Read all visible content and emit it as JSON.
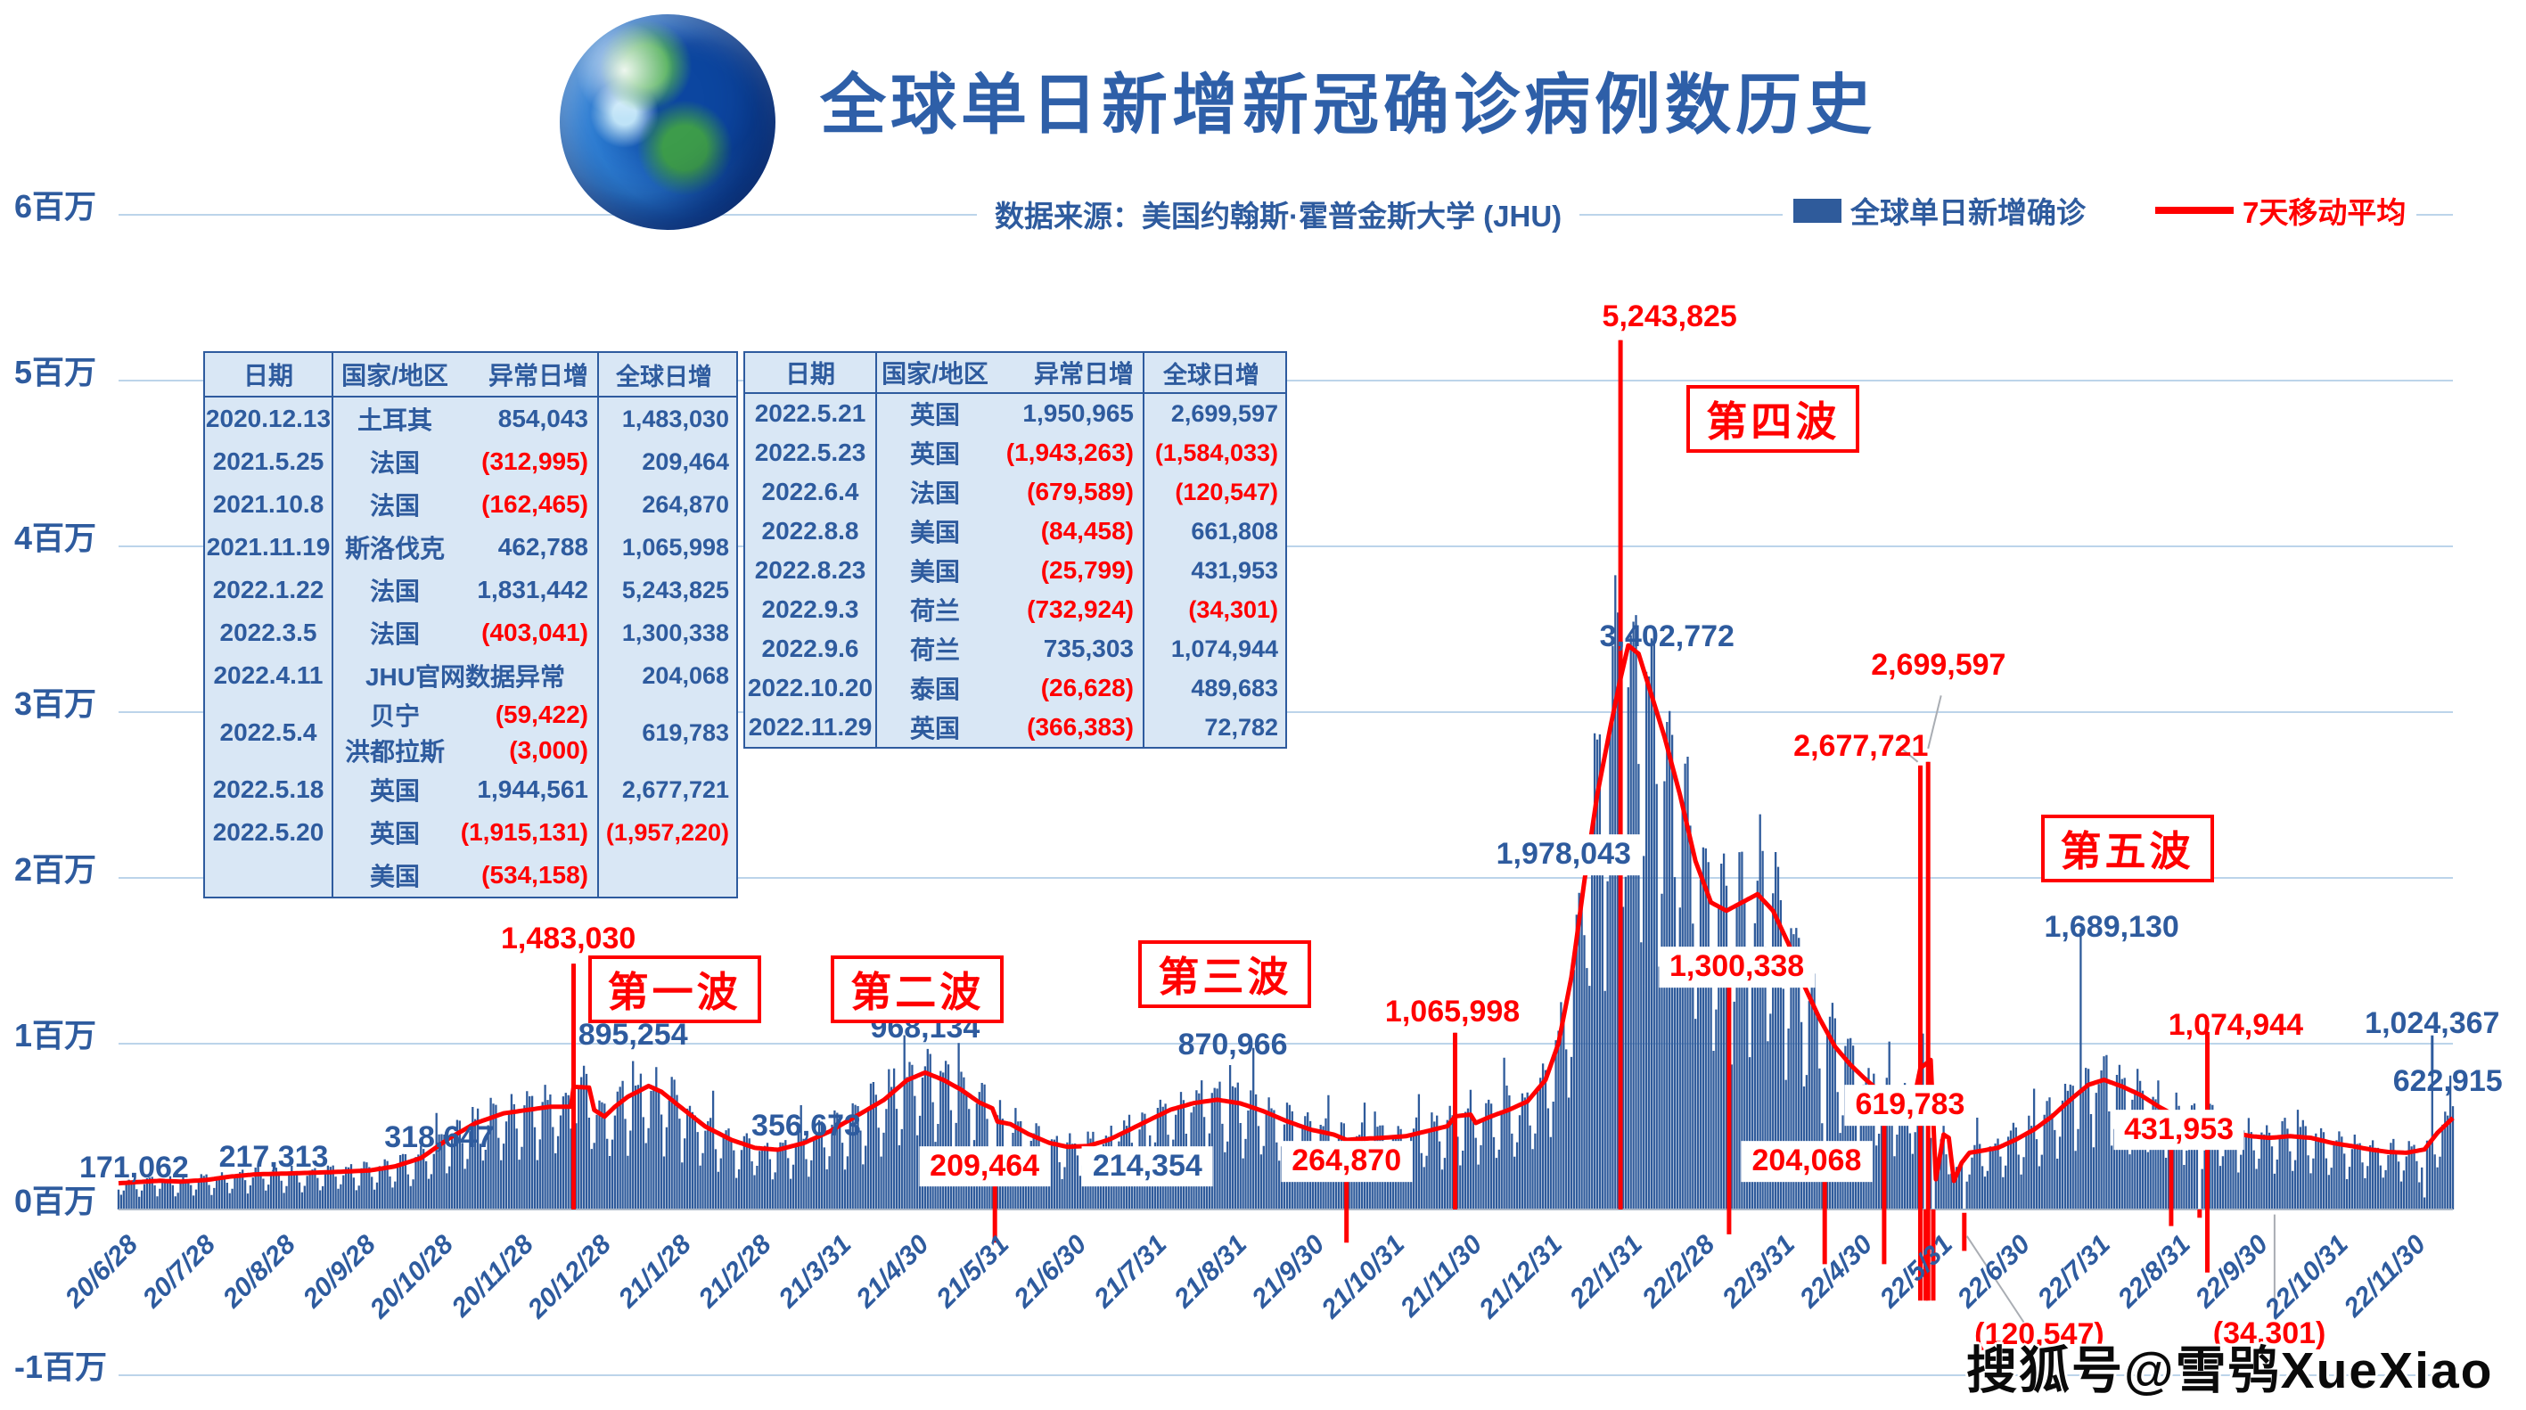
{
  "header": {
    "title": "全球单日新增新冠确诊病例数历史",
    "source": "数据来源：美国约翰斯·霍普金斯大学 (JHU)",
    "legend": [
      {
        "label": "全球单日新增确诊",
        "color": "#2f5b9b",
        "type": "square"
      },
      {
        "label": "7天移动平均",
        "color": "#ff0000",
        "type": "line"
      }
    ]
  },
  "watermark": "搜狐号@雪鸮XueXiao",
  "tables": {
    "headers": [
      "日期",
      "国家/地区",
      "异常日增",
      "全球日增"
    ],
    "left": {
      "rows": [
        {
          "d": "2020.12.13",
          "e": [
            [
              "土耳其",
              "854,043"
            ]
          ],
          "g": "1,483,030"
        },
        {
          "d": "2021.5.25",
          "e": [
            [
              "法国",
              "(312,995)"
            ]
          ],
          "g": "209,464"
        },
        {
          "d": "2021.10.8",
          "e": [
            [
              "法国",
              "(162,465)"
            ]
          ],
          "g": "264,870"
        },
        {
          "d": "2021.11.19",
          "e": [
            [
              "斯洛伐克",
              "462,788"
            ]
          ],
          "g": "1,065,998"
        },
        {
          "d": "2022.1.22",
          "e": [
            [
              "法国",
              "1,831,442"
            ]
          ],
          "g": "5,243,825"
        },
        {
          "d": "2022.3.5",
          "e": [
            [
              "法国",
              "(403,041)"
            ]
          ],
          "g": "1,300,338"
        },
        {
          "d": "2022.4.11",
          "e": [
            [
              "JHU官网数据异常",
              ""
            ]
          ],
          "g": "204,068"
        },
        {
          "d": "2022.5.4",
          "e": [
            [
              "贝宁",
              "(59,422)"
            ],
            [
              "洪都拉斯",
              "(3,000)"
            ]
          ],
          "g": "619,783"
        },
        {
          "d": "2022.5.18",
          "e": [
            [
              "英国",
              "1,944,561"
            ]
          ],
          "g": "2,677,721"
        },
        {
          "d": "2022.5.20",
          "e": [
            [
              "英国",
              "(1,915,131)"
            ]
          ],
          "g": "(1,957,220)"
        },
        {
          "d": "",
          "e": [
            [
              "美国",
              "(534,158)"
            ]
          ],
          "g": ""
        }
      ]
    },
    "right": {
      "rows": [
        {
          "d": "2022.5.21",
          "e": [
            [
              "英国",
              "1,950,965"
            ]
          ],
          "g": "2,699,597"
        },
        {
          "d": "2022.5.23",
          "e": [
            [
              "英国",
              "(1,943,263)"
            ]
          ],
          "g": "(1,584,033)"
        },
        {
          "d": "2022.6.4",
          "e": [
            [
              "法国",
              "(679,589)"
            ]
          ],
          "g": "(120,547)"
        },
        {
          "d": "2022.8.8",
          "e": [
            [
              "美国",
              "(84,458)"
            ]
          ],
          "g": "661,808"
        },
        {
          "d": "2022.8.23",
          "e": [
            [
              "美国",
              "(25,799)"
            ]
          ],
          "g": "431,953"
        },
        {
          "d": "2022.9.3",
          "e": [
            [
              "荷兰",
              "(732,924)"
            ]
          ],
          "g": "(34,301)"
        },
        {
          "d": "2022.9.6",
          "e": [
            [
              "荷兰",
              "735,303"
            ]
          ],
          "g": "1,074,944"
        },
        {
          "d": "2022.10.20",
          "e": [
            [
              "泰国",
              "(26,628)"
            ]
          ],
          "g": "489,683"
        },
        {
          "d": "2022.11.29",
          "e": [
            [
              "英国",
              "(366,383)"
            ]
          ],
          "g": "72,782"
        }
      ]
    }
  },
  "chart_data": {
    "type": "bar",
    "title": "全球单日新增新冠确诊病例数历史",
    "bar_series_name": "全球单日新增确诊",
    "line_series_name": "7天移动平均",
    "bar_color": "#2f5b9b",
    "line_color": "#ff0000",
    "grid_color": "#bcd4ea",
    "ylim": [
      -1000000,
      6000000
    ],
    "start_date": "2020-06-20",
    "end_date": "2022-12-10",
    "y_ticks": [
      [
        6,
        "6百万"
      ],
      [
        5,
        "5百万"
      ],
      [
        4,
        "4百万"
      ],
      [
        3,
        "3百万"
      ],
      [
        2,
        "2百万"
      ],
      [
        1,
        "1百万"
      ],
      [
        0,
        "0百万"
      ],
      [
        -1,
        "-1百万"
      ]
    ],
    "x_ticks": [
      [
        "2020-06-28",
        "20/6/28"
      ],
      [
        "2020-07-28",
        "20/7/28"
      ],
      [
        "2020-08-28",
        "20/8/28"
      ],
      [
        "2020-09-28",
        "20/9/28"
      ],
      [
        "2020-10-28",
        "20/10/28"
      ],
      [
        "2020-11-28",
        "20/11/28"
      ],
      [
        "2020-12-28",
        "20/12/28"
      ],
      [
        "2021-01-28",
        "21/1/28"
      ],
      [
        "2021-02-28",
        "21/2/28"
      ],
      [
        "2021-03-31",
        "21/3/31"
      ],
      [
        "2021-04-30",
        "21/4/30"
      ],
      [
        "2021-05-31",
        "21/5/31"
      ],
      [
        "2021-06-30",
        "21/6/30"
      ],
      [
        "2021-07-31",
        "21/7/31"
      ],
      [
        "2021-08-31",
        "21/8/31"
      ],
      [
        "2021-09-30",
        "21/9/30"
      ],
      [
        "2021-10-31",
        "21/10/31"
      ],
      [
        "2021-11-30",
        "21/11/30"
      ],
      [
        "2021-12-31",
        "21/12/31"
      ],
      [
        "2022-01-31",
        "22/1/31"
      ],
      [
        "2022-02-28",
        "22/2/28"
      ],
      [
        "2022-03-31",
        "22/3/31"
      ],
      [
        "2022-04-30",
        "22/4/30"
      ],
      [
        "2022-05-31",
        "22/5/31"
      ],
      [
        "2022-06-30",
        "22/6/30"
      ],
      [
        "2022-07-31",
        "22/7/31"
      ],
      [
        "2022-08-31",
        "22/8/31"
      ],
      [
        "2022-09-30",
        "22/9/30"
      ],
      [
        "2022-10-31",
        "22/10/31"
      ],
      [
        "2022-11-30",
        "22/11/30"
      ]
    ],
    "ma_control_points": [
      [
        "2020-06-20",
        158000
      ],
      [
        "2020-06-28",
        166000
      ],
      [
        "2020-07-06",
        173000
      ],
      [
        "2020-07-14",
        168000
      ],
      [
        "2020-07-24",
        178000
      ],
      [
        "2020-08-02",
        198000
      ],
      [
        "2020-08-12",
        212000
      ],
      [
        "2020-08-25",
        217313
      ],
      [
        "2020-09-10",
        225000
      ],
      [
        "2020-09-25",
        235000
      ],
      [
        "2020-10-05",
        260000
      ],
      [
        "2020-10-15",
        310000
      ],
      [
        "2020-10-26",
        430000
      ],
      [
        "2020-11-05",
        520000
      ],
      [
        "2020-11-16",
        580000
      ],
      [
        "2020-11-25",
        600000
      ],
      [
        "2020-12-04",
        620000
      ],
      [
        "2020-12-12",
        620000
      ],
      [
        "2020-12-13",
        740000
      ],
      [
        "2020-12-19",
        735000
      ],
      [
        "2020-12-21",
        600000
      ],
      [
        "2020-12-25",
        560000
      ],
      [
        "2020-12-29",
        620000
      ],
      [
        "2021-01-03",
        680000
      ],
      [
        "2021-01-08",
        720000
      ],
      [
        "2021-01-11",
        745000
      ],
      [
        "2021-01-16",
        710000
      ],
      [
        "2021-01-24",
        610000
      ],
      [
        "2021-02-02",
        500000
      ],
      [
        "2021-02-12",
        420000
      ],
      [
        "2021-02-21",
        372000
      ],
      [
        "2021-03-02",
        360000
      ],
      [
        "2021-03-12",
        400000
      ],
      [
        "2021-03-22",
        470000
      ],
      [
        "2021-04-01",
        560000
      ],
      [
        "2021-04-12",
        660000
      ],
      [
        "2021-04-21",
        780000
      ],
      [
        "2021-04-28",
        826000
      ],
      [
        "2021-05-05",
        782000
      ],
      [
        "2021-05-12",
        722000
      ],
      [
        "2021-05-19",
        645000
      ],
      [
        "2021-05-24",
        610000
      ],
      [
        "2021-05-26",
        530000
      ],
      [
        "2021-05-31",
        515000
      ],
      [
        "2021-06-07",
        455000
      ],
      [
        "2021-06-15",
        402000
      ],
      [
        "2021-06-22",
        378000
      ],
      [
        "2021-06-30",
        383000
      ],
      [
        "2021-07-08",
        420000
      ],
      [
        "2021-07-16",
        480000
      ],
      [
        "2021-07-24",
        542000
      ],
      [
        "2021-08-01",
        602000
      ],
      [
        "2021-08-10",
        642000
      ],
      [
        "2021-08-19",
        662000
      ],
      [
        "2021-08-28",
        640000
      ],
      [
        "2021-09-06",
        592000
      ],
      [
        "2021-09-15",
        532000
      ],
      [
        "2021-09-24",
        482000
      ],
      [
        "2021-10-03",
        452000
      ],
      [
        "2021-10-08",
        420000
      ],
      [
        "2021-10-14",
        426000
      ],
      [
        "2021-10-22",
        432000
      ],
      [
        "2021-10-31",
        442000
      ],
      [
        "2021-11-08",
        472000
      ],
      [
        "2021-11-16",
        502000
      ],
      [
        "2021-11-19",
        562000
      ],
      [
        "2021-11-25",
        572000
      ],
      [
        "2021-11-27",
        522000
      ],
      [
        "2021-12-03",
        562000
      ],
      [
        "2021-12-10",
        602000
      ],
      [
        "2021-12-17",
        652000
      ],
      [
        "2021-12-24",
        782000
      ],
      [
        "2021-12-29",
        1002000
      ],
      [
        "2022-01-03",
        1402000
      ],
      [
        "2022-01-08",
        1978043
      ],
      [
        "2022-01-13",
        2502000
      ],
      [
        "2022-01-18",
        2902000
      ],
      [
        "2022-01-22",
        3202000
      ],
      [
        "2022-01-25",
        3402772
      ],
      [
        "2022-01-29",
        3352000
      ],
      [
        "2022-02-03",
        3102000
      ],
      [
        "2022-02-08",
        2852000
      ],
      [
        "2022-02-14",
        2502000
      ],
      [
        "2022-02-20",
        2102000
      ],
      [
        "2022-02-26",
        1852000
      ],
      [
        "2022-03-04",
        1802000
      ],
      [
        "2022-03-10",
        1852000
      ],
      [
        "2022-03-16",
        1902000
      ],
      [
        "2022-03-22",
        1802000
      ],
      [
        "2022-03-28",
        1602000
      ],
      [
        "2022-04-03",
        1352000
      ],
      [
        "2022-04-09",
        1152000
      ],
      [
        "2022-04-15",
        982000
      ],
      [
        "2022-04-21",
        872000
      ],
      [
        "2022-04-27",
        782000
      ],
      [
        "2022-05-03",
        702000
      ],
      [
        "2022-05-09",
        642000
      ],
      [
        "2022-05-15",
        622000
      ],
      [
        "2022-05-18",
        852000
      ],
      [
        "2022-05-22",
        902000
      ],
      [
        "2022-05-24",
        182000
      ],
      [
        "2022-05-27",
        452000
      ],
      [
        "2022-05-29",
        432000
      ],
      [
        "2022-05-31",
        172000
      ],
      [
        "2022-06-03",
        282000
      ],
      [
        "2022-06-06",
        342000
      ],
      [
        "2022-06-10",
        352000
      ],
      [
        "2022-06-17",
        372000
      ],
      [
        "2022-06-24",
        422000
      ],
      [
        "2022-07-01",
        482000
      ],
      [
        "2022-07-08",
        562000
      ],
      [
        "2022-07-15",
        662000
      ],
      [
        "2022-07-22",
        752000
      ],
      [
        "2022-07-28",
        782000
      ],
      [
        "2022-08-04",
        742000
      ],
      [
        "2022-08-11",
        692000
      ],
      [
        "2022-08-18",
        622000
      ],
      [
        "2022-08-25",
        562000
      ],
      [
        "2022-09-01",
        512000
      ],
      [
        "2022-09-04",
        482000
      ],
      [
        "2022-09-07",
        562000
      ],
      [
        "2022-09-10",
        502000
      ],
      [
        "2022-09-16",
        462000
      ],
      [
        "2022-09-23",
        442000
      ],
      [
        "2022-09-30",
        432000
      ],
      [
        "2022-10-08",
        442000
      ],
      [
        "2022-10-16",
        432000
      ],
      [
        "2022-10-24",
        402000
      ],
      [
        "2022-11-01",
        382000
      ],
      [
        "2022-11-08",
        362000
      ],
      [
        "2022-11-15",
        347000
      ],
      [
        "2022-11-22",
        342000
      ],
      [
        "2022-11-29",
        362000
      ],
      [
        "2022-12-04",
        462000
      ],
      [
        "2022-12-10",
        552000
      ]
    ],
    "daily_anomalies": {
      "2020-12-13": 1483030,
      "2021-01-05": 895254,
      "2021-04-29": 968134,
      "2021-05-25": 209464,
      "2021-07-23": 214354,
      "2021-08-24": 870966,
      "2021-10-08": 264870,
      "2021-11-19": 1065998,
      "2022-01-22": 5243825,
      "2022-03-05": 1300338,
      "2022-04-11": 204068,
      "2022-05-04": 619783,
      "2022-05-18": 2677721,
      "2022-05-20": -1957220,
      "2022-05-21": 2699597,
      "2022-05-23": -1584033,
      "2022-06-04": -120547,
      "2022-07-19": 1689130,
      "2022-08-08": 661808,
      "2022-08-23": 431953,
      "2022-09-03": -34301,
      "2022-09-06": 1074944,
      "2022-10-20": 489683,
      "2022-11-29": 72782,
      "2022-12-02": 1024367,
      "2022-12-10": 622915
    },
    "annotations": [
      {
        "t": "171,062",
        "d": "2020-06-26",
        "v": 0.25,
        "c": "blue"
      },
      {
        "t": "217,313",
        "d": "2020-08-19",
        "v": 0.31,
        "c": "blue"
      },
      {
        "t": "318,647",
        "d": "2020-10-22",
        "v": 0.43,
        "c": "blue"
      },
      {
        "t": "1,483,030",
        "d": "2020-12-11",
        "v": 1.63,
        "c": "red"
      },
      {
        "t": "895,254",
        "d": "2021-01-05",
        "v": 1.05,
        "c": "blue"
      },
      {
        "t": "356,673",
        "d": "2021-03-13",
        "v": 0.5,
        "c": "blue"
      },
      {
        "t": "968,134",
        "d": "2021-04-28",
        "v": 1.09,
        "c": "blue"
      },
      {
        "t": "209,464",
        "d": "2021-05-21",
        "v": 0.26,
        "c": "red",
        "box": true
      },
      {
        "t": "214,354",
        "d": "2021-07-23",
        "v": 0.26,
        "c": "blue",
        "box": true
      },
      {
        "t": "870,966",
        "d": "2021-08-25",
        "v": 0.99,
        "c": "blue"
      },
      {
        "t": "264,870",
        "d": "2021-10-08",
        "v": 0.29,
        "c": "red",
        "box": true
      },
      {
        "t": "1,065,998",
        "d": "2021-11-18",
        "v": 1.19,
        "c": "red"
      },
      {
        "t": "1,978,043",
        "d": "2021-12-31",
        "v": 2.14,
        "c": "blue",
        "box": true
      },
      {
        "t": "5,243,825",
        "d": "2022-02-10",
        "v": 5.38,
        "c": "red"
      },
      {
        "t": "3,402,772",
        "d": "2022-02-09",
        "v": 3.45,
        "c": "blue"
      },
      {
        "t": "1,300,338",
        "d": "2022-03-08",
        "v": 1.46,
        "c": "red",
        "box": true
      },
      {
        "t": "204,068",
        "d": "2022-04-04",
        "v": 0.29,
        "c": "red",
        "box": true
      },
      {
        "t": "2,677,721",
        "d": "2022-04-25",
        "v": 2.79,
        "c": "red"
      },
      {
        "t": "619,783",
        "d": "2022-05-14",
        "v": 0.63,
        "c": "red",
        "box": true
      },
      {
        "t": "2,699,597",
        "d": "2022-05-25",
        "v": 3.28,
        "c": "red"
      },
      {
        "t": "1,689,130",
        "d": "2022-07-31",
        "v": 1.7,
        "c": "blue"
      },
      {
        "t": "431,953",
        "d": "2022-08-26",
        "v": 0.48,
        "c": "red",
        "box": true
      },
      {
        "t": "1,074,944",
        "d": "2022-09-17",
        "v": 1.11,
        "c": "red"
      },
      {
        "t": "1,024,367",
        "d": "2022-12-02",
        "v": 1.12,
        "c": "blue"
      },
      {
        "t": "622,915",
        "d": "2022-12-08",
        "v": 0.77,
        "c": "blue"
      },
      {
        "t": "(120,547)",
        "d": "2022-07-03",
        "v": -0.76,
        "c": "red"
      },
      {
        "t": "(34,301)",
        "d": "2022-09-30",
        "v": -0.75,
        "c": "red"
      }
    ],
    "wave_labels": [
      {
        "t": "第一波",
        "d": "2021-01-21",
        "v": 1.33
      },
      {
        "t": "第二波",
        "d": "2021-04-25",
        "v": 1.33
      },
      {
        "t": "第三波",
        "d": "2021-08-22",
        "v": 1.42
      },
      {
        "t": "第四波",
        "d": "2022-03-22",
        "v": 4.77
      },
      {
        "t": "第五波",
        "d": "2022-08-06",
        "v": 2.18
      }
    ],
    "anomaly_markers": [
      [
        "2020-12-13",
        1.483,
        0
      ],
      [
        "2021-05-25",
        0.3,
        -0.2
      ],
      [
        "2021-10-08",
        0.3,
        -0.2
      ],
      [
        "2021-11-19",
        1.066,
        0
      ],
      [
        "2022-01-22",
        5.244,
        0
      ],
      [
        "2022-03-05",
        1.34,
        -0.15
      ],
      [
        "2022-04-11",
        0.22,
        -0.33
      ],
      [
        "2022-05-04",
        0.62,
        -0.33
      ],
      [
        "2022-05-18",
        2.678,
        -0.55
      ],
      [
        "2022-05-20",
        0,
        -0.55
      ],
      [
        "2022-05-21",
        2.7,
        -0.55
      ],
      [
        "2022-05-23",
        0,
        -0.55
      ],
      [
        "2022-06-04",
        -0.02,
        -0.25
      ],
      [
        "2022-08-23",
        0.43,
        -0.1
      ],
      [
        "2022-09-03",
        0,
        -0.05
      ],
      [
        "2022-09-06",
        1.07,
        -0.38
      ]
    ],
    "leader_lines": [
      [
        "2022-05-10",
        2.79,
        "2022-05-17",
        2.7,
        "gray"
      ],
      [
        "2022-05-26",
        3.1,
        "2022-05-21",
        2.78,
        "gray"
      ],
      [
        "2022-06-27",
        -0.68,
        "2022-06-05",
        -0.16,
        "gray"
      ],
      [
        "2022-10-02",
        -0.66,
        "2022-10-02",
        -0.03,
        "gray"
      ],
      [
        "2022-12-02",
        1.05,
        "2022-12-02",
        0.8,
        "blue"
      ]
    ]
  }
}
